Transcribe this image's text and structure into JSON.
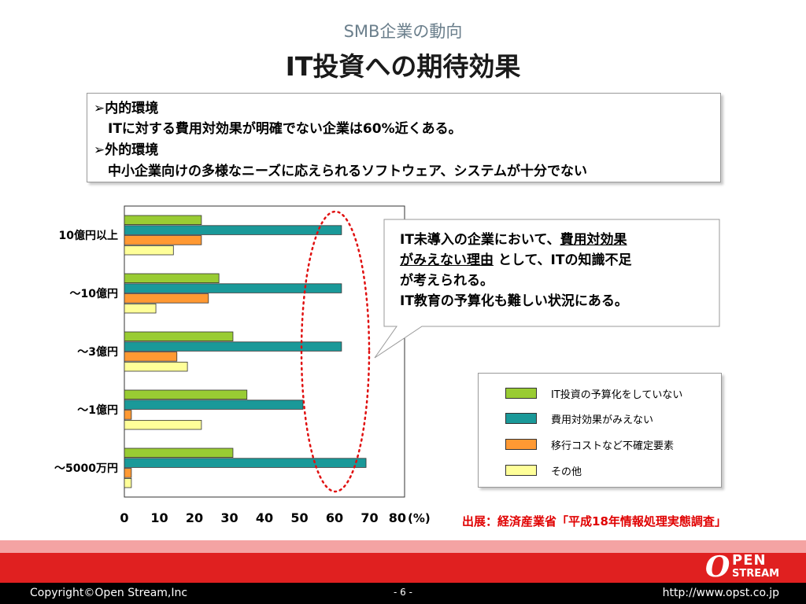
{
  "slide": {
    "subtitle": "SMB企業の動向",
    "title": "IT投資への期待効果"
  },
  "environment": {
    "internal_heading": "➢内的環境",
    "internal_text": "ITに対する費用対効果が明確でない企業は60%近くある。",
    "external_heading": "➢外的環境",
    "external_text": "中小企業向けの多様なニーズに応えられるソフトウェア、システムが十分でない"
  },
  "callout": {
    "l1_a": "IT未導入の企業において、",
    "l1_b": "費用対効果",
    "l2_a": "がみえない理由",
    "l2_b": " として、ITの知識不足",
    "l3": "が考えられる。",
    "l4": "IT教育の予算化も難しい状況にある。"
  },
  "chart_data": {
    "type": "bar",
    "orientation": "horizontal",
    "categories": [
      "10億円以上",
      "～10億円",
      "～3億円",
      "～1億円",
      "～5000万円"
    ],
    "series": [
      {
        "name": "IT投資の予算化をしていない",
        "color": "#99cc33",
        "values": [
          22,
          27,
          31,
          35,
          31
        ]
      },
      {
        "name": "費用対効果がみえない",
        "color": "#1a9999",
        "values": [
          62,
          62,
          62,
          51,
          69
        ]
      },
      {
        "name": "移行コストなど不確定要素",
        "color": "#ff9933",
        "values": [
          22,
          24,
          15,
          2,
          2
        ]
      },
      {
        "name": "その他",
        "color": "#ffff99",
        "values": [
          14,
          9,
          18,
          22,
          2
        ]
      }
    ],
    "x_ticks": [
      "0",
      "10",
      "20",
      "30",
      "40",
      "50",
      "60",
      "70",
      "80"
    ],
    "x_unit": "(%)",
    "xlim": [
      0,
      80
    ],
    "legend_position": "lower-right",
    "highlight": "red dotted ellipse around the 費用対効果がみえない bars"
  },
  "source": "出展：経済産業省「平成18年情報処理実態調査」",
  "footer": {
    "copyright": "Copyright©Open Stream,Inc",
    "page": "- 6 -",
    "url": "http://www.opst.co.jp"
  },
  "logo": {
    "mark": "O",
    "line1": "PEN",
    "line2": "STREAM"
  }
}
